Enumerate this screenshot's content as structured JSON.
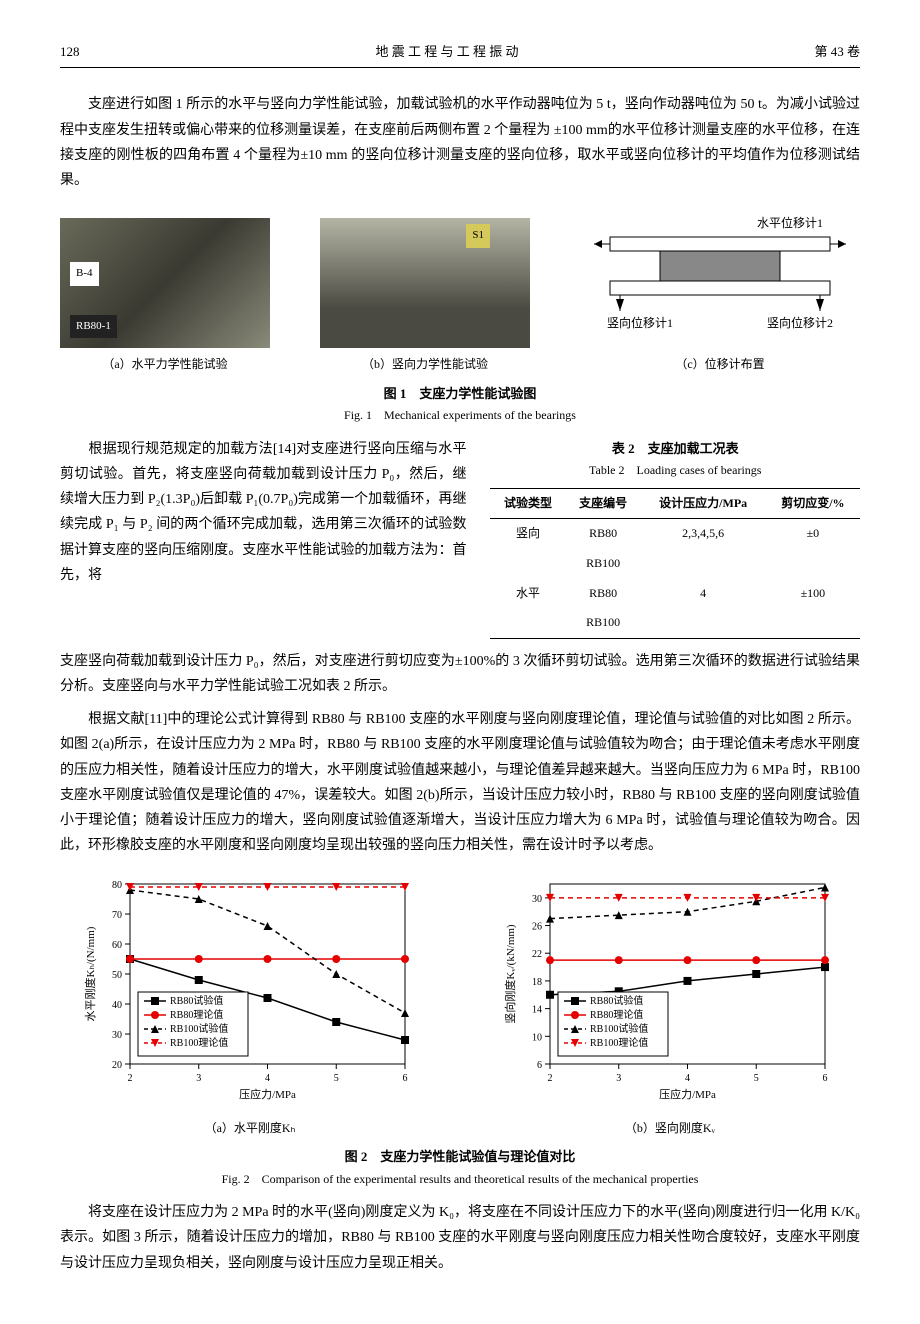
{
  "header": {
    "page_no": "128",
    "journal": "地 震 工 程 与 工 程 振 动",
    "volume": "第 43 卷"
  },
  "para1": "支座进行如图 1 所示的水平与竖向力学性能试验，加载试验机的水平作动器吨位为 5 t，竖向作动器吨位为 50 t。为减小试验过程中支座发生扭转或偏心带来的位移测量误差，在支座前后两侧布置 2 个量程为 ±100 mm的水平位移计测量支座的水平位移，在连接支座的刚性板的四角布置 4 个量程为±10 mm 的竖向位移计测量支座的竖向位移，取水平或竖向位移计的平均值作为位移测试结果。",
  "fig1": {
    "photo_a_tag": "B-4",
    "photo_a_label2": "RB80-1",
    "photo_b_tag": "S1",
    "sub_a": "（a）水平力学性能试验",
    "sub_b": "（b）竖向力学性能试验",
    "sub_c": "（c）位移计布置",
    "diagram": {
      "top_label": "水平位移计1",
      "bl_label": "竖向位移计1",
      "br_label": "竖向位移计2"
    },
    "caption_cn": "图 1　支座力学性能试验图",
    "caption_en": "Fig. 1　Mechanical experiments of the bearings"
  },
  "para2_left": "　　根据现行规范规定的加载方法[14]对支座进行竖向压缩与水平剪切试验。首先，将支座竖向荷载加载到设计压力 P₀，然后，继续增大压力到 P₂(1.3P₀)后卸载 P₁(0.7P₀)完成第一个加载循环，再继续完成 P₁ 与 P₂ 间的两个循环完成加载，选用第三次循环的试验数据计算支座的竖向压缩刚度。支座水平性能试验的加载方法为：首先，将",
  "table2": {
    "title_cn": "表 2　支座加载工况表",
    "title_en": "Table 2　Loading cases of bearings",
    "headers": [
      "试验类型",
      "支座编号",
      "设计压应力/MPa",
      "剪切应变/%"
    ],
    "rows": [
      [
        "竖向",
        "RB80",
        "2,3,4,5,6",
        "±0"
      ],
      [
        "",
        "RB100",
        "",
        ""
      ],
      [
        "水平",
        "RB80",
        "4",
        "±100"
      ],
      [
        "",
        "RB100",
        "",
        ""
      ]
    ]
  },
  "para2_cont": "支座竖向荷载加载到设计压力 P₀，然后，对支座进行剪切应变为±100%的 3 次循环剪切试验。选用第三次循环的数据进行试验结果分析。支座竖向与水平力学性能试验工况如表 2 所示。",
  "para3": "　　根据文献[11]中的理论公式计算得到 RB80 与 RB100 支座的水平刚度与竖向刚度理论值，理论值与试验值的对比如图 2 所示。如图 2(a)所示，在设计压应力为 2 MPa 时，RB80 与 RB100 支座的水平刚度理论值与试验值较为吻合；由于理论值未考虑水平刚度的压应力相关性，随着设计压应力的增大，水平刚度试验值越来越小，与理论值差异越来越大。当竖向压应力为 6 MPa 时，RB100 支座水平刚度试验值仅是理论值的 47%，误差较大。如图 2(b)所示，当设计压应力较小时，RB80 与 RB100 支座的竖向刚度试验值小于理论值；随着设计压应力的增大，竖向刚度试验值逐渐增大，当设计压应力增大为 6 MPa 时，试验值与理论值较为吻合。因此，环形橡胶支座的水平刚度和竖向刚度均呈现出较强的竖向压力相关性，需在设计时予以考虑。",
  "fig2": {
    "chart_a": {
      "type": "line",
      "xlabel": "压应力/MPa",
      "ylabel": "水平刚度Kₕ/(N/mm)",
      "xlim": [
        2,
        6
      ],
      "ylim": [
        20,
        80
      ],
      "xticks": [
        2,
        3,
        4,
        5,
        6
      ],
      "yticks": [
        20,
        30,
        40,
        50,
        60,
        70,
        80
      ],
      "grid_color": "#bfbfbf",
      "background_color": "#ffffff",
      "axis_fontsize": 11,
      "tick_fontsize": 10,
      "legend_pos": "lower-left",
      "series": [
        {
          "name": "RB80试验值",
          "color": "#000000",
          "marker": "square",
          "dash": "solid",
          "x": [
            2,
            3,
            4,
            5,
            6
          ],
          "y": [
            55,
            48,
            42,
            34,
            28
          ]
        },
        {
          "name": "RB80理论值",
          "color": "#e60000",
          "marker": "circle",
          "dash": "solid",
          "x": [
            2,
            3,
            4,
            5,
            6
          ],
          "y": [
            55,
            55,
            55,
            55,
            55
          ]
        },
        {
          "name": "RB100试验值",
          "color": "#000000",
          "marker": "triangle",
          "dash": "dashed",
          "x": [
            2,
            3,
            4,
            5,
            6
          ],
          "y": [
            78,
            75,
            66,
            50,
            37
          ]
        },
        {
          "name": "RB100理论值",
          "color": "#e60000",
          "marker": "inv-triangle",
          "dash": "dashed",
          "x": [
            2,
            3,
            4,
            5,
            6
          ],
          "y": [
            79,
            79,
            79,
            79,
            79
          ]
        }
      ],
      "caption": "（a）水平刚度Kₕ"
    },
    "chart_b": {
      "type": "line",
      "xlabel": "压应力/MPa",
      "ylabel": "竖向刚度Kᵥ/(kN/mm)",
      "xlim": [
        2,
        6
      ],
      "ylim": [
        6,
        32
      ],
      "xticks": [
        2,
        3,
        4,
        5,
        6
      ],
      "yticks": [
        6,
        10,
        14,
        18,
        22,
        26,
        30
      ],
      "grid_color": "#bfbfbf",
      "background_color": "#ffffff",
      "axis_fontsize": 11,
      "tick_fontsize": 10,
      "legend_pos": "lower-left-inset",
      "series": [
        {
          "name": "RB80试验值",
          "color": "#000000",
          "marker": "square",
          "dash": "solid",
          "x": [
            2,
            3,
            4,
            5,
            6
          ],
          "y": [
            16,
            16.5,
            18,
            19,
            20
          ]
        },
        {
          "name": "RB80理论值",
          "color": "#e60000",
          "marker": "circle",
          "dash": "solid",
          "x": [
            2,
            3,
            4,
            5,
            6
          ],
          "y": [
            21,
            21,
            21,
            21,
            21
          ]
        },
        {
          "name": "RB100试验值",
          "color": "#000000",
          "marker": "triangle",
          "dash": "dashed",
          "x": [
            2,
            3,
            4,
            5,
            6
          ],
          "y": [
            27,
            27.5,
            28,
            29.5,
            31.5
          ]
        },
        {
          "name": "RB100理论值",
          "color": "#e60000",
          "marker": "inv-triangle",
          "dash": "dashed",
          "x": [
            2,
            3,
            4,
            5,
            6
          ],
          "y": [
            30,
            30,
            30,
            30,
            30
          ]
        }
      ],
      "caption": "（b）竖向刚度Kᵥ"
    },
    "caption_cn": "图 2　支座力学性能试验值与理论值对比",
    "caption_en": "Fig. 2　Comparison of the experimental results and theoretical results of the mechanical properties"
  },
  "para4": "　　将支座在设计压应力为 2 MPa 时的水平(竖向)刚度定义为 K₀，将支座在不同设计压应力下的水平(竖向)刚度进行归一化用 K/K₀ 表示。如图 3 所示，随着设计压应力的增加，RB80 与 RB100 支座的水平刚度与竖向刚度压应力相关性吻合度较好，支座水平刚度与设计压应力呈现负相关，竖向刚度与设计压应力呈现正相关。"
}
